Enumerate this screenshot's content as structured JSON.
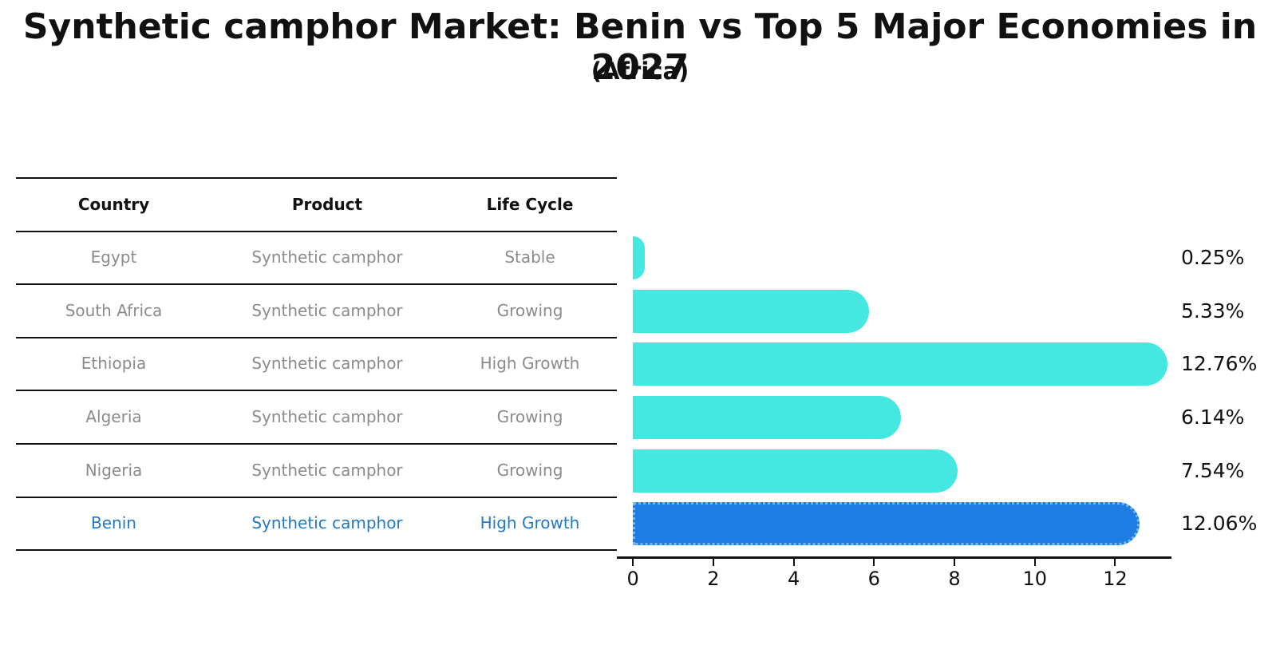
{
  "title": "Synthetic camphor Market: Benin vs Top 5 Major Economies in 2027",
  "subtitle": "(Africa)",
  "table": {
    "headers": [
      "Country",
      "Product",
      "Life Cycle"
    ],
    "rows": [
      {
        "country": "Egypt",
        "product": "Synthetic camphor",
        "life_cycle": "Stable",
        "highlight": false
      },
      {
        "country": "South Africa",
        "product": "Synthetic camphor",
        "life_cycle": "Growing",
        "highlight": false
      },
      {
        "country": "Ethiopia",
        "product": "Synthetic camphor",
        "life_cycle": "High Growth",
        "highlight": false
      },
      {
        "country": "Algeria",
        "product": "Synthetic camphor",
        "life_cycle": "Growing",
        "highlight": false
      },
      {
        "country": "Nigeria",
        "product": "Synthetic camphor",
        "life_cycle": "Growing",
        "highlight": false
      },
      {
        "country": "Benin",
        "product": "Synthetic camphor",
        "life_cycle": "High Growth",
        "highlight": true
      }
    ]
  },
  "chart_data": {
    "type": "bar",
    "orientation": "horizontal",
    "title": "Synthetic camphor Market: Benin vs Top 5 Major Economies in 2027",
    "subtitle": "(Africa)",
    "categories": [
      "Egypt",
      "South Africa",
      "Ethiopia",
      "Algeria",
      "Nigeria",
      "Benin"
    ],
    "values": [
      0.25,
      5.33,
      12.76,
      6.14,
      7.54,
      12.06
    ],
    "value_labels": [
      "0.25%",
      "5.33%",
      "12.76%",
      "6.14%",
      "7.54%",
      "12.06%"
    ],
    "xticks": [
      0,
      2,
      4,
      6,
      8,
      10,
      12
    ],
    "xlim": [
      -0.4,
      13.4
    ],
    "grid": false,
    "legend": "none",
    "highlight_index": 5,
    "colors": {
      "bar": "#45e8e0",
      "highlight_bar": "#1e7de2",
      "highlight_edge": "#6db9f5",
      "table_text": "#8b8b8b",
      "highlight_text": "#2478c4",
      "header_text": "#111111",
      "axis_text": "#111111"
    }
  }
}
